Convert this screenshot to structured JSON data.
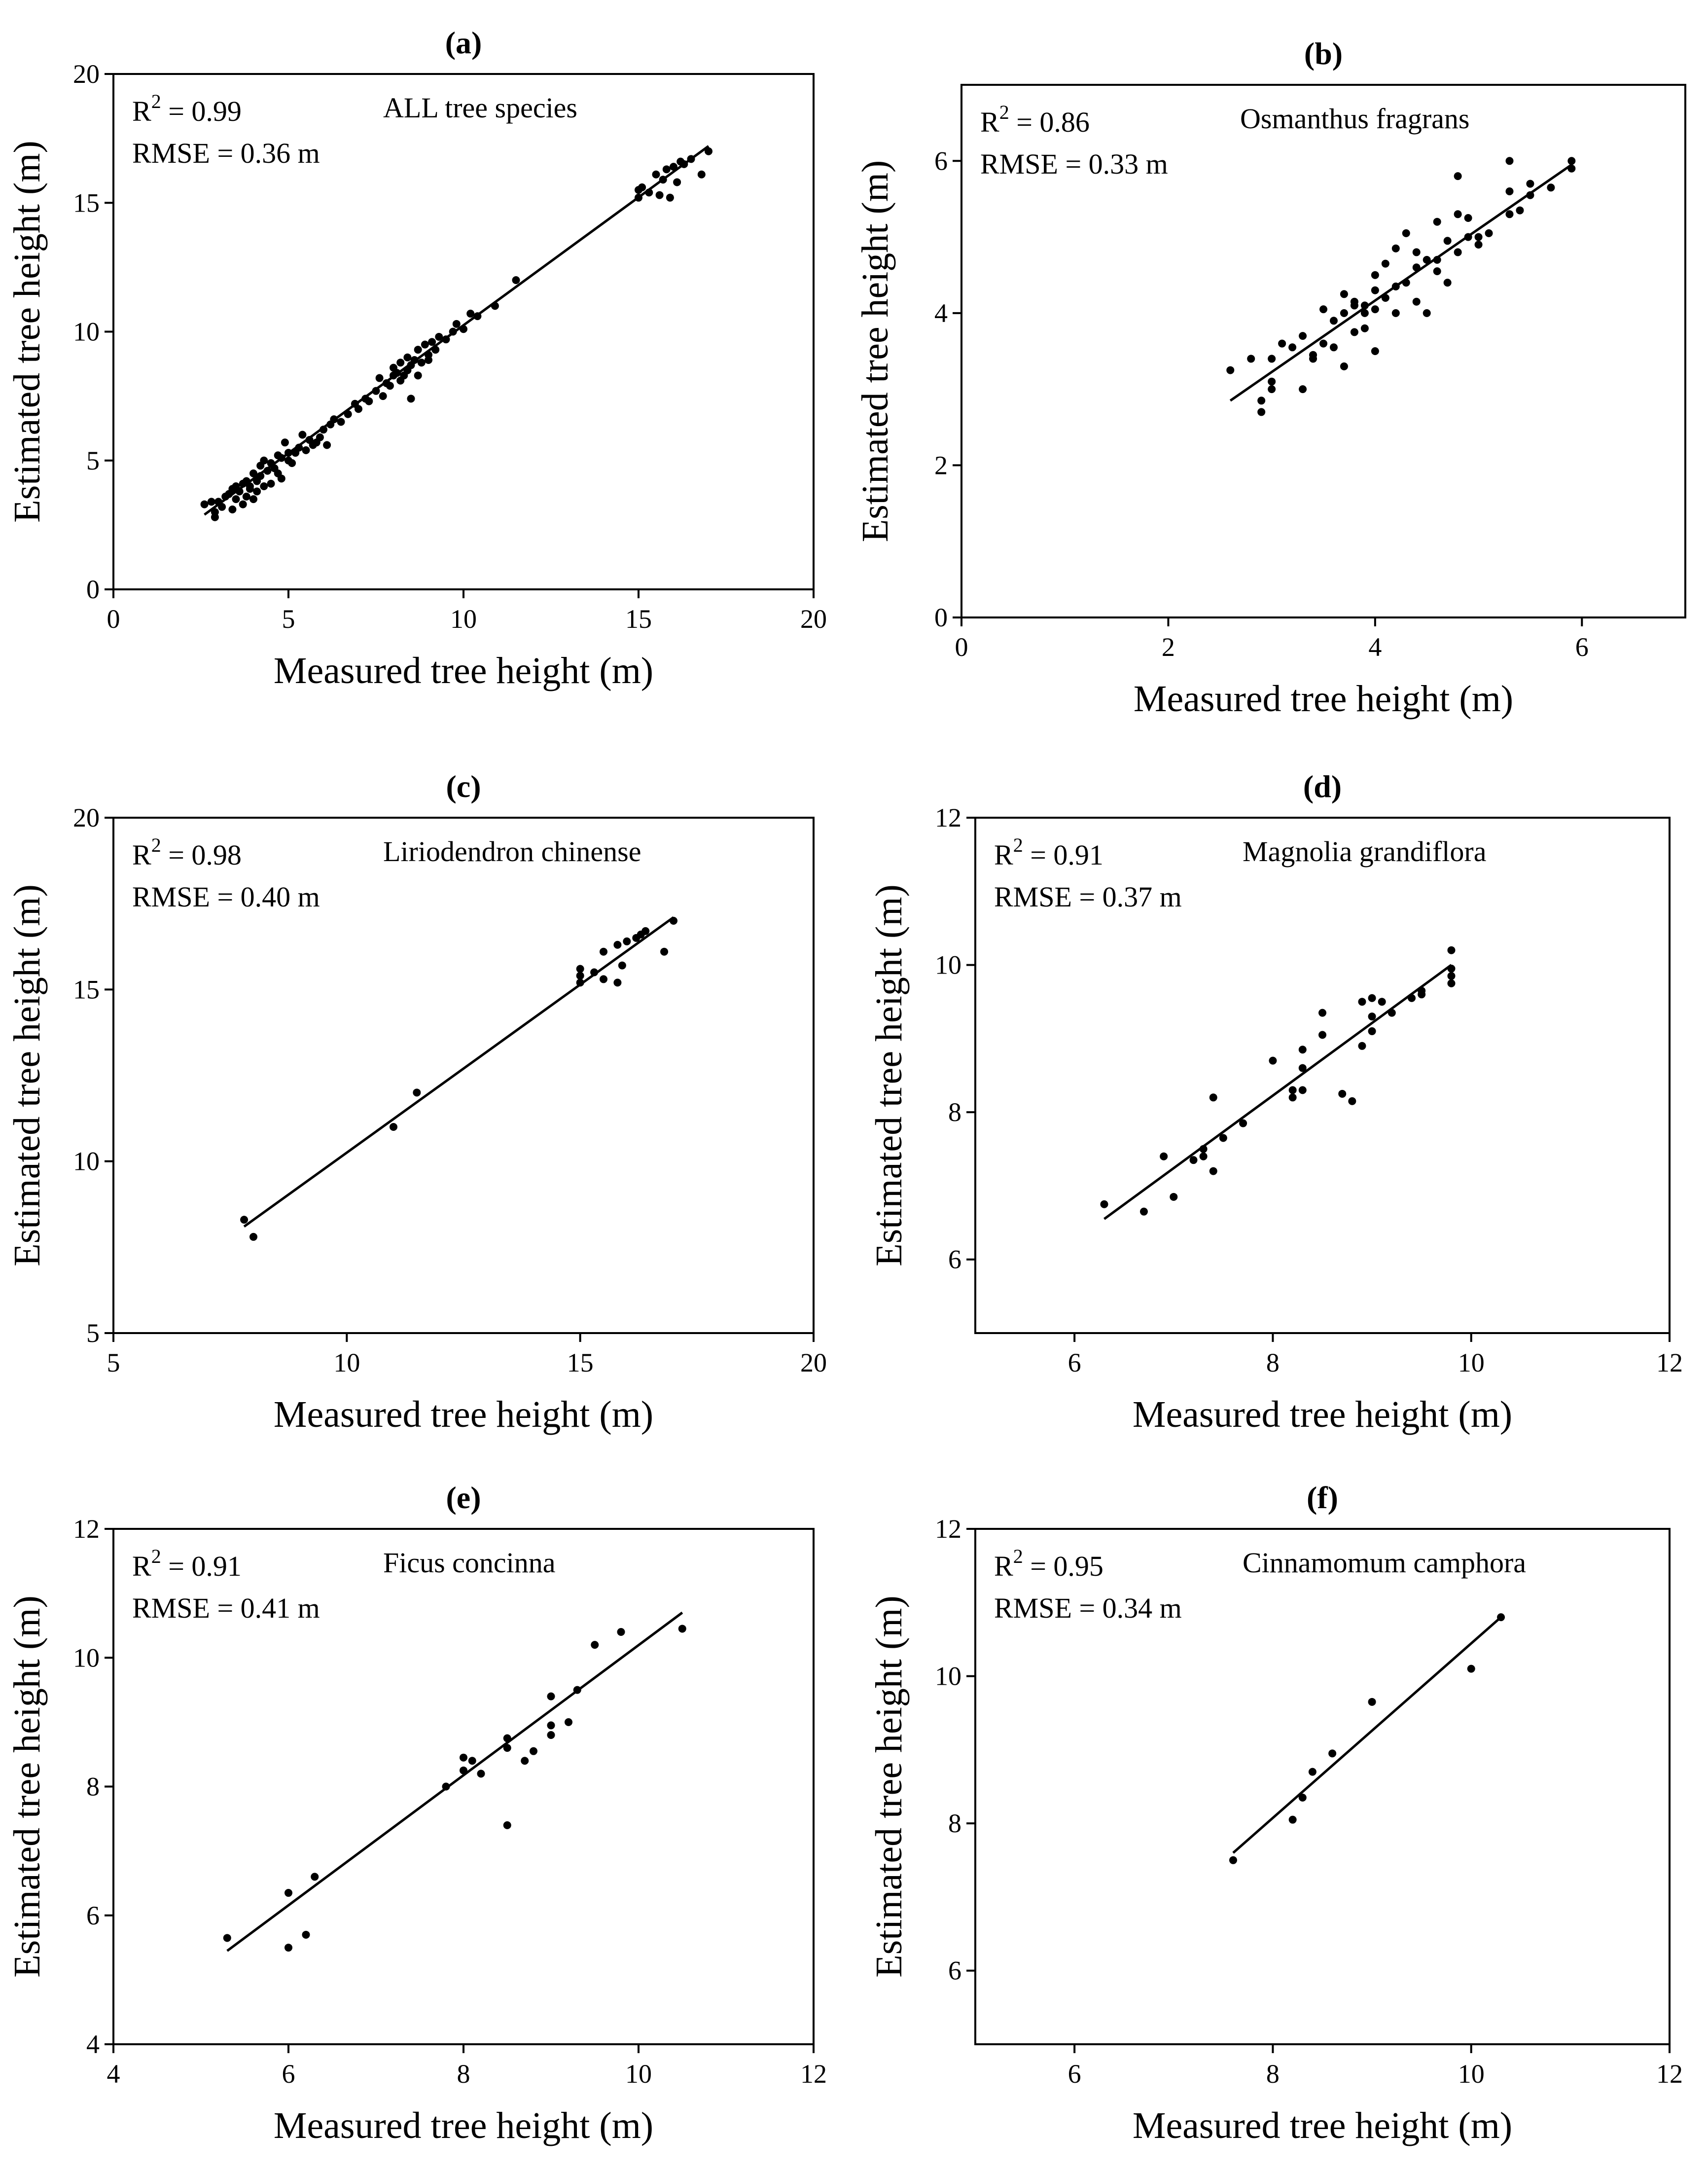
{
  "chart_data": [
    {
      "type": "scatter",
      "panel_label": "(a)",
      "annotation_r2_prefix": "R",
      "annotation_r2_sup": "2",
      "annotation_r2_value": " = 0.99",
      "annotation_rmse": "RMSE = 0.36 m",
      "species": "ALL tree species",
      "xlabel": "Measured tree height (m)",
      "ylabel": "Estimated tree height (m)",
      "xlim": [
        0,
        20
      ],
      "ylim": [
        0,
        20
      ],
      "xticks": [
        0,
        5,
        10,
        15,
        20
      ],
      "yticks": [
        0,
        5,
        10,
        15,
        20
      ],
      "fit": {
        "x": [
          2.6,
          17.0
        ],
        "y": [
          2.9,
          17.2
        ]
      },
      "points": [
        [
          2.6,
          3.3
        ],
        [
          2.8,
          3.4
        ],
        [
          2.9,
          2.8
        ],
        [
          2.9,
          3.0
        ],
        [
          3.0,
          3.4
        ],
        [
          3.1,
          3.2
        ],
        [
          3.2,
          3.6
        ],
        [
          3.3,
          3.7
        ],
        [
          3.4,
          3.1
        ],
        [
          3.4,
          3.9
        ],
        [
          3.5,
          3.5
        ],
        [
          3.5,
          4.0
        ],
        [
          3.6,
          3.8
        ],
        [
          3.7,
          3.3
        ],
        [
          3.7,
          4.1
        ],
        [
          3.8,
          4.2
        ],
        [
          3.8,
          3.6
        ],
        [
          3.9,
          4.0
        ],
        [
          3.9,
          3.9
        ],
        [
          4.0,
          3.5
        ],
        [
          4.0,
          4.5
        ],
        [
          4.1,
          4.2
        ],
        [
          4.1,
          3.8
        ],
        [
          4.2,
          4.8
        ],
        [
          4.2,
          4.4
        ],
        [
          4.3,
          4.0
        ],
        [
          4.3,
          5.0
        ],
        [
          4.4,
          4.6
        ],
        [
          4.5,
          4.9
        ],
        [
          4.5,
          4.1
        ],
        [
          4.6,
          4.7
        ],
        [
          4.7,
          5.2
        ],
        [
          4.7,
          4.5
        ],
        [
          4.8,
          5.1
        ],
        [
          4.8,
          4.3
        ],
        [
          4.9,
          5.7
        ],
        [
          5.0,
          5.0
        ],
        [
          5.0,
          5.3
        ],
        [
          5.1,
          4.9
        ],
        [
          5.2,
          5.3
        ],
        [
          5.3,
          5.5
        ],
        [
          5.4,
          6.0
        ],
        [
          5.5,
          5.4
        ],
        [
          5.6,
          5.8
        ],
        [
          5.7,
          5.6
        ],
        [
          5.8,
          5.7
        ],
        [
          5.9,
          5.9
        ],
        [
          6.0,
          6.2
        ],
        [
          6.1,
          5.6
        ],
        [
          6.2,
          6.4
        ],
        [
          6.3,
          6.6
        ],
        [
          6.5,
          6.5
        ],
        [
          6.7,
          6.8
        ],
        [
          6.9,
          7.2
        ],
        [
          7.0,
          7.0
        ],
        [
          7.2,
          7.4
        ],
        [
          7.3,
          7.3
        ],
        [
          7.5,
          7.7
        ],
        [
          7.6,
          8.2
        ],
        [
          7.7,
          7.5
        ],
        [
          7.8,
          8.0
        ],
        [
          7.9,
          7.9
        ],
        [
          8.0,
          8.3
        ],
        [
          8.0,
          8.6
        ],
        [
          8.1,
          8.4
        ],
        [
          8.2,
          8.1
        ],
        [
          8.2,
          8.8
        ],
        [
          8.3,
          8.3
        ],
        [
          8.4,
          9.0
        ],
        [
          8.4,
          8.5
        ],
        [
          8.5,
          8.7
        ],
        [
          8.5,
          7.4
        ],
        [
          8.6,
          8.9
        ],
        [
          8.7,
          8.3
        ],
        [
          8.7,
          9.3
        ],
        [
          8.8,
          8.8
        ],
        [
          8.9,
          9.5
        ],
        [
          9.0,
          9.1
        ],
        [
          9.0,
          8.9
        ],
        [
          9.1,
          9.6
        ],
        [
          9.2,
          9.3
        ],
        [
          9.3,
          9.8
        ],
        [
          9.5,
          9.7
        ],
        [
          9.7,
          10.0
        ],
        [
          9.8,
          10.3
        ],
        [
          10.0,
          10.1
        ],
        [
          10.2,
          10.7
        ],
        [
          10.4,
          10.6
        ],
        [
          10.9,
          11.0
        ],
        [
          11.5,
          12.0
        ],
        [
          15.0,
          15.2
        ],
        [
          15.0,
          15.5
        ],
        [
          15.1,
          15.6
        ],
        [
          15.3,
          15.4
        ],
        [
          15.5,
          16.1
        ],
        [
          15.6,
          15.3
        ],
        [
          15.7,
          15.9
        ],
        [
          15.8,
          16.3
        ],
        [
          15.9,
          15.2
        ],
        [
          16.0,
          16.4
        ],
        [
          16.1,
          15.8
        ],
        [
          16.2,
          16.6
        ],
        [
          16.3,
          16.5
        ],
        [
          16.5,
          16.7
        ],
        [
          16.8,
          16.1
        ],
        [
          17.0,
          17.0
        ]
      ]
    },
    {
      "type": "scatter",
      "panel_label": "(b)",
      "annotation_r2_prefix": "R",
      "annotation_r2_sup": "2",
      "annotation_r2_value": " = 0.86",
      "annotation_rmse": "RMSE = 0.33 m",
      "species": "Osmanthus fragrans",
      "xlabel": "Measured tree height (m)",
      "ylabel": "Estimated tree height (m)",
      "xlim": [
        0,
        7
      ],
      "ylim": [
        0,
        7
      ],
      "xticks": [
        0,
        2,
        4,
        6
      ],
      "yticks": [
        0,
        2,
        4,
        6
      ],
      "fit": {
        "x": [
          2.6,
          5.9
        ],
        "y": [
          2.85,
          5.95
        ]
      },
      "points": [
        [
          2.6,
          3.25
        ],
        [
          2.8,
          3.4
        ],
        [
          2.9,
          2.7
        ],
        [
          2.9,
          2.85
        ],
        [
          3.0,
          3.0
        ],
        [
          3.0,
          3.1
        ],
        [
          3.0,
          3.4
        ],
        [
          3.1,
          3.6
        ],
        [
          3.2,
          3.55
        ],
        [
          3.3,
          3.0
        ],
        [
          3.3,
          3.7
        ],
        [
          3.4,
          3.4
        ],
        [
          3.4,
          3.45
        ],
        [
          3.5,
          3.6
        ],
        [
          3.5,
          4.05
        ],
        [
          3.6,
          3.9
        ],
        [
          3.6,
          3.55
        ],
        [
          3.7,
          3.3
        ],
        [
          3.7,
          4.0
        ],
        [
          3.7,
          4.25
        ],
        [
          3.8,
          3.75
        ],
        [
          3.8,
          4.1
        ],
        [
          3.8,
          4.15
        ],
        [
          3.9,
          3.8
        ],
        [
          3.9,
          4.0
        ],
        [
          3.9,
          4.1
        ],
        [
          4.0,
          3.5
        ],
        [
          4.0,
          4.05
        ],
        [
          4.0,
          4.3
        ],
        [
          4.0,
          4.5
        ],
        [
          4.1,
          4.2
        ],
        [
          4.1,
          4.65
        ],
        [
          4.2,
          4.0
        ],
        [
          4.2,
          4.35
        ],
        [
          4.2,
          4.85
        ],
        [
          4.3,
          4.4
        ],
        [
          4.3,
          5.05
        ],
        [
          4.4,
          4.6
        ],
        [
          4.4,
          4.15
        ],
        [
          4.4,
          4.8
        ],
        [
          4.5,
          4.0
        ],
        [
          4.5,
          4.7
        ],
        [
          4.6,
          4.55
        ],
        [
          4.6,
          4.7
        ],
        [
          4.6,
          5.2
        ],
        [
          4.7,
          4.4
        ],
        [
          4.7,
          4.95
        ],
        [
          4.8,
          4.8
        ],
        [
          4.8,
          5.3
        ],
        [
          4.8,
          5.8
        ],
        [
          4.9,
          5.0
        ],
        [
          4.9,
          5.25
        ],
        [
          5.0,
          4.9
        ],
        [
          5.0,
          5.0
        ],
        [
          5.1,
          5.05
        ],
        [
          5.3,
          5.3
        ],
        [
          5.3,
          5.6
        ],
        [
          5.3,
          6.0
        ],
        [
          5.4,
          5.35
        ],
        [
          5.5,
          5.55
        ],
        [
          5.5,
          5.7
        ],
        [
          5.7,
          5.65
        ],
        [
          5.9,
          5.9
        ],
        [
          5.9,
          6.0
        ]
      ]
    },
    {
      "type": "scatter",
      "panel_label": "(c)",
      "annotation_r2_prefix": "R",
      "annotation_r2_sup": "2",
      "annotation_r2_value": " = 0.98",
      "annotation_rmse": "RMSE = 0.40 m",
      "species": "Liriodendron  chinense",
      "xlabel": "Measured tree height (m)",
      "ylabel": "Estimated tree height (m)",
      "xlim": [
        5,
        20
      ],
      "ylim": [
        5,
        20
      ],
      "xticks": [
        5,
        10,
        15,
        20
      ],
      "yticks": [
        5,
        10,
        15,
        20
      ],
      "fit": {
        "x": [
          7.8,
          17.0
        ],
        "y": [
          8.1,
          17.1
        ]
      },
      "points": [
        [
          7.8,
          8.3
        ],
        [
          8.0,
          7.8
        ],
        [
          11.0,
          11.0
        ],
        [
          11.5,
          12.0
        ],
        [
          15.0,
          15.2
        ],
        [
          15.0,
          15.4
        ],
        [
          15.0,
          15.6
        ],
        [
          15.3,
          15.5
        ],
        [
          15.5,
          16.1
        ],
        [
          15.5,
          15.3
        ],
        [
          15.8,
          15.2
        ],
        [
          15.8,
          16.3
        ],
        [
          15.9,
          15.7
        ],
        [
          16.0,
          16.4
        ],
        [
          16.2,
          16.5
        ],
        [
          16.3,
          16.6
        ],
        [
          16.4,
          16.7
        ],
        [
          16.8,
          16.1
        ],
        [
          17.0,
          17.0
        ]
      ]
    },
    {
      "type": "scatter",
      "panel_label": "(d)",
      "annotation_r2_prefix": "R",
      "annotation_r2_sup": "2",
      "annotation_r2_value": " = 0.91",
      "annotation_rmse": "RMSE = 0.37 m",
      "species": "Magnolia grandiflora",
      "xlabel": "Measured tree height (m)",
      "ylabel": "Estimated tree height (m)",
      "xlim": [
        5,
        12
      ],
      "ylim": [
        5,
        12
      ],
      "xticks": [
        6,
        8,
        10,
        12
      ],
      "yticks": [
        6,
        8,
        10,
        12
      ],
      "fit": {
        "x": [
          6.3,
          9.8
        ],
        "y": [
          6.55,
          10.0
        ]
      },
      "points": [
        [
          6.3,
          6.75
        ],
        [
          6.7,
          6.65
        ],
        [
          6.9,
          7.4
        ],
        [
          7.0,
          6.85
        ],
        [
          7.2,
          7.35
        ],
        [
          7.3,
          7.4
        ],
        [
          7.3,
          7.5
        ],
        [
          7.4,
          7.2
        ],
        [
          7.4,
          8.2
        ],
        [
          7.5,
          7.65
        ],
        [
          7.7,
          7.85
        ],
        [
          8.0,
          8.7
        ],
        [
          8.2,
          8.2
        ],
        [
          8.2,
          8.3
        ],
        [
          8.3,
          8.3
        ],
        [
          8.3,
          8.6
        ],
        [
          8.3,
          8.85
        ],
        [
          8.5,
          9.05
        ],
        [
          8.5,
          9.35
        ],
        [
          8.7,
          8.25
        ],
        [
          8.8,
          8.15
        ],
        [
          8.9,
          8.9
        ],
        [
          8.9,
          9.5
        ],
        [
          9.0,
          9.1
        ],
        [
          9.0,
          9.3
        ],
        [
          9.0,
          9.55
        ],
        [
          9.1,
          9.5
        ],
        [
          9.2,
          9.35
        ],
        [
          9.4,
          9.55
        ],
        [
          9.5,
          9.6
        ],
        [
          9.5,
          9.65
        ],
        [
          9.8,
          9.75
        ],
        [
          9.8,
          9.85
        ],
        [
          9.8,
          9.95
        ],
        [
          9.8,
          10.2
        ]
      ]
    },
    {
      "type": "scatter",
      "panel_label": "(e)",
      "annotation_r2_prefix": "R",
      "annotation_r2_sup": "2",
      "annotation_r2_value": " = 0.91",
      "annotation_rmse": "RMSE = 0.41 m",
      "species": "Ficus concinna",
      "xlabel": "Measured tree height (m)",
      "ylabel": "Estimated tree height (m)",
      "xlim": [
        4,
        12
      ],
      "ylim": [
        4,
        12
      ],
      "xticks": [
        4,
        6,
        8,
        10,
        12
      ],
      "yticks": [
        4,
        6,
        8,
        10,
        12
      ],
      "fit": {
        "x": [
          5.3,
          10.5
        ],
        "y": [
          5.45,
          10.7
        ]
      },
      "points": [
        [
          5.3,
          5.65
        ],
        [
          6.0,
          5.5
        ],
        [
          6.0,
          6.35
        ],
        [
          6.2,
          5.7
        ],
        [
          6.3,
          6.6
        ],
        [
          7.8,
          8.0
        ],
        [
          8.0,
          8.25
        ],
        [
          8.0,
          8.45
        ],
        [
          8.1,
          8.4
        ],
        [
          8.2,
          8.2
        ],
        [
          8.5,
          8.6
        ],
        [
          8.5,
          8.75
        ],
        [
          8.5,
          7.4
        ],
        [
          8.7,
          8.4
        ],
        [
          8.8,
          8.55
        ],
        [
          9.0,
          8.8
        ],
        [
          9.0,
          8.95
        ],
        [
          9.0,
          9.4
        ],
        [
          9.2,
          9.0
        ],
        [
          9.3,
          9.5
        ],
        [
          9.5,
          10.2
        ],
        [
          9.8,
          10.4
        ],
        [
          10.5,
          10.45
        ]
      ]
    },
    {
      "type": "scatter",
      "panel_label": "(f)",
      "annotation_r2_prefix": "R",
      "annotation_r2_sup": "2",
      "annotation_r2_value": " = 0.95",
      "annotation_rmse": "RMSE = 0.34 m",
      "species": "Cinnamomum camphora",
      "xlabel": "Measured tree height (m)",
      "ylabel": "Estimated tree height (m)",
      "xlim": [
        5,
        12
      ],
      "ylim": [
        5,
        12
      ],
      "xticks": [
        6,
        8,
        10,
        12
      ],
      "yticks": [
        6,
        8,
        10,
        12
      ],
      "fit": {
        "x": [
          7.6,
          10.3
        ],
        "y": [
          7.6,
          10.8
        ]
      },
      "points": [
        [
          7.6,
          7.5
        ],
        [
          8.2,
          8.05
        ],
        [
          8.3,
          8.35
        ],
        [
          8.4,
          8.7
        ],
        [
          8.6,
          8.95
        ],
        [
          9.0,
          9.65
        ],
        [
          10.0,
          10.1
        ],
        [
          10.3,
          10.8
        ]
      ]
    }
  ]
}
